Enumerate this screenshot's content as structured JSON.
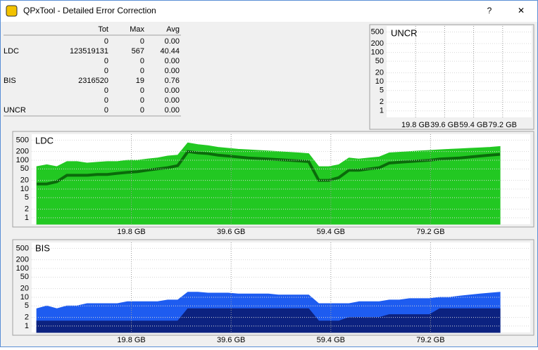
{
  "window": {
    "title": "QPxTool - Detailed Error Correction",
    "buttons": [
      "?",
      "✕"
    ]
  },
  "table": {
    "header": [
      "Tot",
      "Max",
      "Avg"
    ],
    "rows": [
      {
        "label": null,
        "cells": [
          "0",
          "0",
          "0.00"
        ]
      },
      {
        "label": "LDC",
        "cells": [
          "123519131",
          "567",
          "40.44"
        ]
      },
      {
        "label": null,
        "cells": [
          "0",
          "0",
          "0.00"
        ]
      },
      {
        "label": null,
        "cells": [
          "0",
          "0",
          "0.00"
        ]
      },
      {
        "label": "BIS",
        "cells": [
          "2316520",
          "19",
          "0.76"
        ]
      },
      {
        "label": null,
        "cells": [
          "0",
          "0",
          "0.00"
        ]
      },
      {
        "label": null,
        "cells": [
          "0",
          "0",
          "0.00"
        ]
      },
      {
        "label": "UNCR",
        "cells": [
          "0",
          "0",
          "0.00"
        ]
      }
    ]
  },
  "chart_data": [
    {
      "type": "area",
      "title": "UNCR",
      "log_scale": true,
      "grid": true,
      "xlim": [
        0,
        99
      ],
      "ylim": [
        0.6,
        800
      ],
      "xticks": [
        {
          "value": 19.8,
          "label": "19.8 GB"
        },
        {
          "value": 39.6,
          "label": "39.6 GB"
        },
        {
          "value": 59.4,
          "label": "59.4 GB"
        },
        {
          "value": 79.2,
          "label": "79.2 GB"
        }
      ],
      "yticks": [
        1,
        2,
        5,
        10,
        20,
        50,
        100,
        200,
        500
      ],
      "x": [],
      "series": []
    },
    {
      "type": "area",
      "title": "LDC",
      "log_scale": true,
      "grid": true,
      "xlim": [
        0,
        99
      ],
      "ylim": [
        0.6,
        800
      ],
      "xticks": [
        {
          "value": 19.8,
          "label": "19.8 GB"
        },
        {
          "value": 39.6,
          "label": "39.6 GB"
        },
        {
          "value": 59.4,
          "label": "59.4 GB"
        },
        {
          "value": 79.2,
          "label": "79.2 GB"
        }
      ],
      "yticks": [
        1,
        2,
        5,
        10,
        20,
        50,
        100,
        200,
        500
      ],
      "x": [
        1,
        3,
        5,
        7,
        9,
        11,
        13,
        15,
        17,
        19,
        21,
        23,
        25,
        27,
        29,
        31,
        33,
        35,
        37,
        39,
        41,
        43,
        45,
        47,
        49,
        51,
        53,
        55,
        57,
        59,
        61,
        63,
        65,
        67,
        69,
        71,
        73,
        75,
        77,
        79,
        81,
        83,
        85,
        87,
        89,
        91,
        93
      ],
      "series": [
        {
          "color": "#22c822",
          "style": "area",
          "values": [
            60,
            70,
            60,
            90,
            90,
            80,
            85,
            90,
            90,
            100,
            100,
            110,
            120,
            140,
            150,
            400,
            350,
            320,
            280,
            260,
            240,
            230,
            220,
            210,
            200,
            190,
            180,
            170,
            60,
            60,
            70,
            120,
            110,
            120,
            130,
            180,
            190,
            200,
            210,
            220,
            230,
            240,
            250,
            260,
            270,
            280,
            300
          ]
        },
        {
          "color": "#0b6b0b",
          "style": "line",
          "values": [
            15,
            15,
            18,
            30,
            30,
            30,
            32,
            32,
            35,
            38,
            40,
            45,
            50,
            55,
            65,
            200,
            180,
            170,
            150,
            140,
            130,
            120,
            115,
            110,
            105,
            100,
            95,
            90,
            20,
            20,
            25,
            45,
            45,
            50,
            55,
            80,
            85,
            90,
            95,
            100,
            110,
            115,
            120,
            130,
            140,
            150,
            160
          ]
        }
      ]
    },
    {
      "type": "area",
      "title": "BIS",
      "log_scale": true,
      "grid": true,
      "xlim": [
        0,
        99
      ],
      "ylim": [
        0.6,
        800
      ],
      "xticks": [
        {
          "value": 19.8,
          "label": "19.8 GB"
        },
        {
          "value": 39.6,
          "label": "39.6 GB"
        },
        {
          "value": 59.4,
          "label": "59.4 GB"
        },
        {
          "value": 79.2,
          "label": "79.2 GB"
        }
      ],
      "yticks": [
        1,
        2,
        5,
        10,
        20,
        50,
        100,
        200,
        500
      ],
      "x": [
        1,
        3,
        5,
        7,
        9,
        11,
        13,
        15,
        17,
        19,
        21,
        23,
        25,
        27,
        29,
        31,
        33,
        35,
        37,
        39,
        41,
        43,
        45,
        47,
        49,
        51,
        53,
        55,
        57,
        59,
        61,
        63,
        65,
        67,
        69,
        71,
        73,
        75,
        77,
        79,
        81,
        83,
        85,
        87,
        89,
        91,
        93
      ],
      "series": [
        {
          "color": "#1e5cf0",
          "style": "area",
          "values": [
            4,
            5,
            4,
            5,
            5,
            6,
            6,
            6,
            6,
            7,
            7,
            7,
            7,
            8,
            8,
            15,
            15,
            14,
            14,
            14,
            13,
            13,
            13,
            13,
            12,
            12,
            12,
            12,
            6,
            6,
            6,
            6,
            7,
            7,
            7,
            8,
            8,
            9,
            9,
            9,
            10,
            10,
            11,
            12,
            13,
            14,
            15
          ]
        },
        {
          "color": "#0c2280",
          "style": "area",
          "values": [
            1.5,
            1.5,
            1.5,
            1.5,
            1.5,
            1.5,
            1.5,
            1.5,
            1.5,
            1.5,
            1.5,
            1.5,
            1.5,
            1.5,
            1.5,
            4,
            4,
            4,
            4,
            4,
            4,
            4,
            4,
            4,
            4,
            4,
            4,
            4,
            1.5,
            1.5,
            1.5,
            2,
            2,
            2,
            2,
            2.5,
            2.5,
            2.5,
            2.5,
            2.5,
            4,
            4,
            4,
            4,
            4,
            4,
            4
          ]
        }
      ]
    }
  ]
}
